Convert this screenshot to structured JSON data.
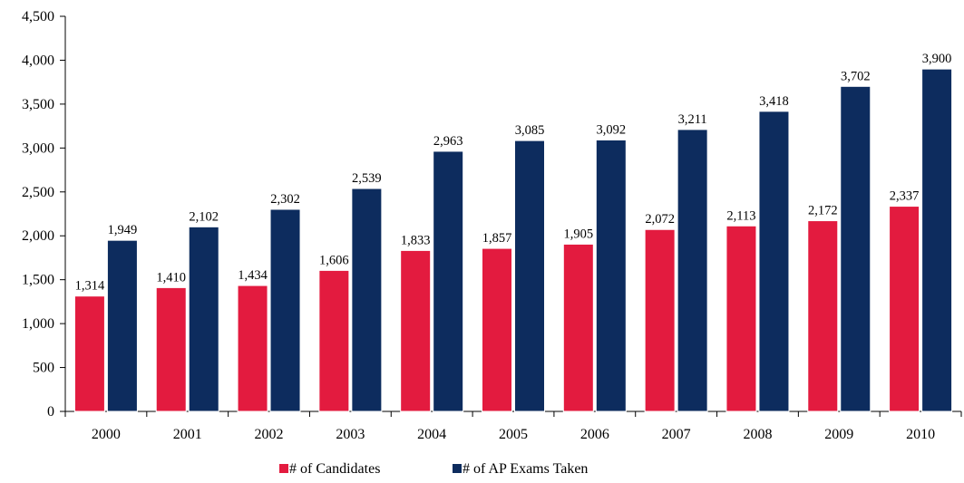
{
  "chart_data": {
    "type": "bar",
    "categories": [
      "2000",
      "2001",
      "2002",
      "2003",
      "2004",
      "2005",
      "2006",
      "2007",
      "2008",
      "2009",
      "2010"
    ],
    "series": [
      {
        "name": "# of Candidates",
        "color": "#e31b3f",
        "values": [
          1314,
          1410,
          1434,
          1606,
          1833,
          1857,
          1905,
          2072,
          2113,
          2172,
          2337
        ],
        "labels": [
          "1,314",
          "1,410",
          "1,434",
          "1,606",
          "1,833",
          "1,857",
          "1,905",
          "2,072",
          "2,113",
          "2,172",
          "2,337"
        ]
      },
      {
        "name": "# of AP Exams Taken",
        "color": "#0d2c5e",
        "values": [
          1949,
          2102,
          2302,
          2539,
          2963,
          3085,
          3092,
          3211,
          3418,
          3702,
          3900
        ],
        "labels": [
          "1,949",
          "2,102",
          "2,302",
          "2,539",
          "2,963",
          "3,085",
          "3,092",
          "3,211",
          "3,418",
          "3,702",
          "3,900"
        ]
      }
    ],
    "yticks": [
      0,
      500,
      1000,
      1500,
      2000,
      2500,
      3000,
      3500,
      4000,
      4500
    ],
    "ytick_labels": [
      "0",
      "500",
      "1,000",
      "1,500",
      "2,000",
      "2,500",
      "3,000",
      "3,500",
      "4,000",
      "4,500"
    ],
    "ylim": [
      0,
      4500
    ],
    "title": "",
    "xlabel": "",
    "ylabel": "",
    "grid": false,
    "legend_position": "bottom-center"
  }
}
